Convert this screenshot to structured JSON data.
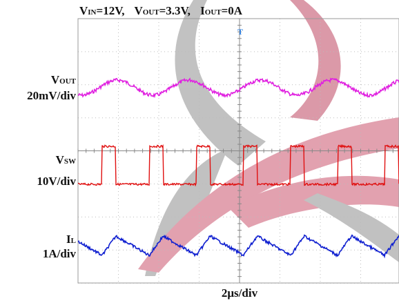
{
  "header": {
    "parts": [
      {
        "symbol": "V",
        "subscript": "IN",
        "text": "=12V,"
      },
      {
        "symbol": "V",
        "subscript": "OUT",
        "text": "=3.3V,"
      },
      {
        "symbol": "I",
        "subscript": "OUT",
        "text": "=0A"
      }
    ]
  },
  "channels": [
    {
      "symbol": "V",
      "subscript": "OUT",
      "scale": "20mV/div",
      "color": "#e020e0"
    },
    {
      "symbol": "V",
      "subscript": "SW",
      "scale": "10V/div",
      "color": "#e01010"
    },
    {
      "symbol": "I",
      "subscript": "L",
      "scale": "1A/div",
      "color": "#1020d0"
    }
  ],
  "timebase": "2μs/div"
}
